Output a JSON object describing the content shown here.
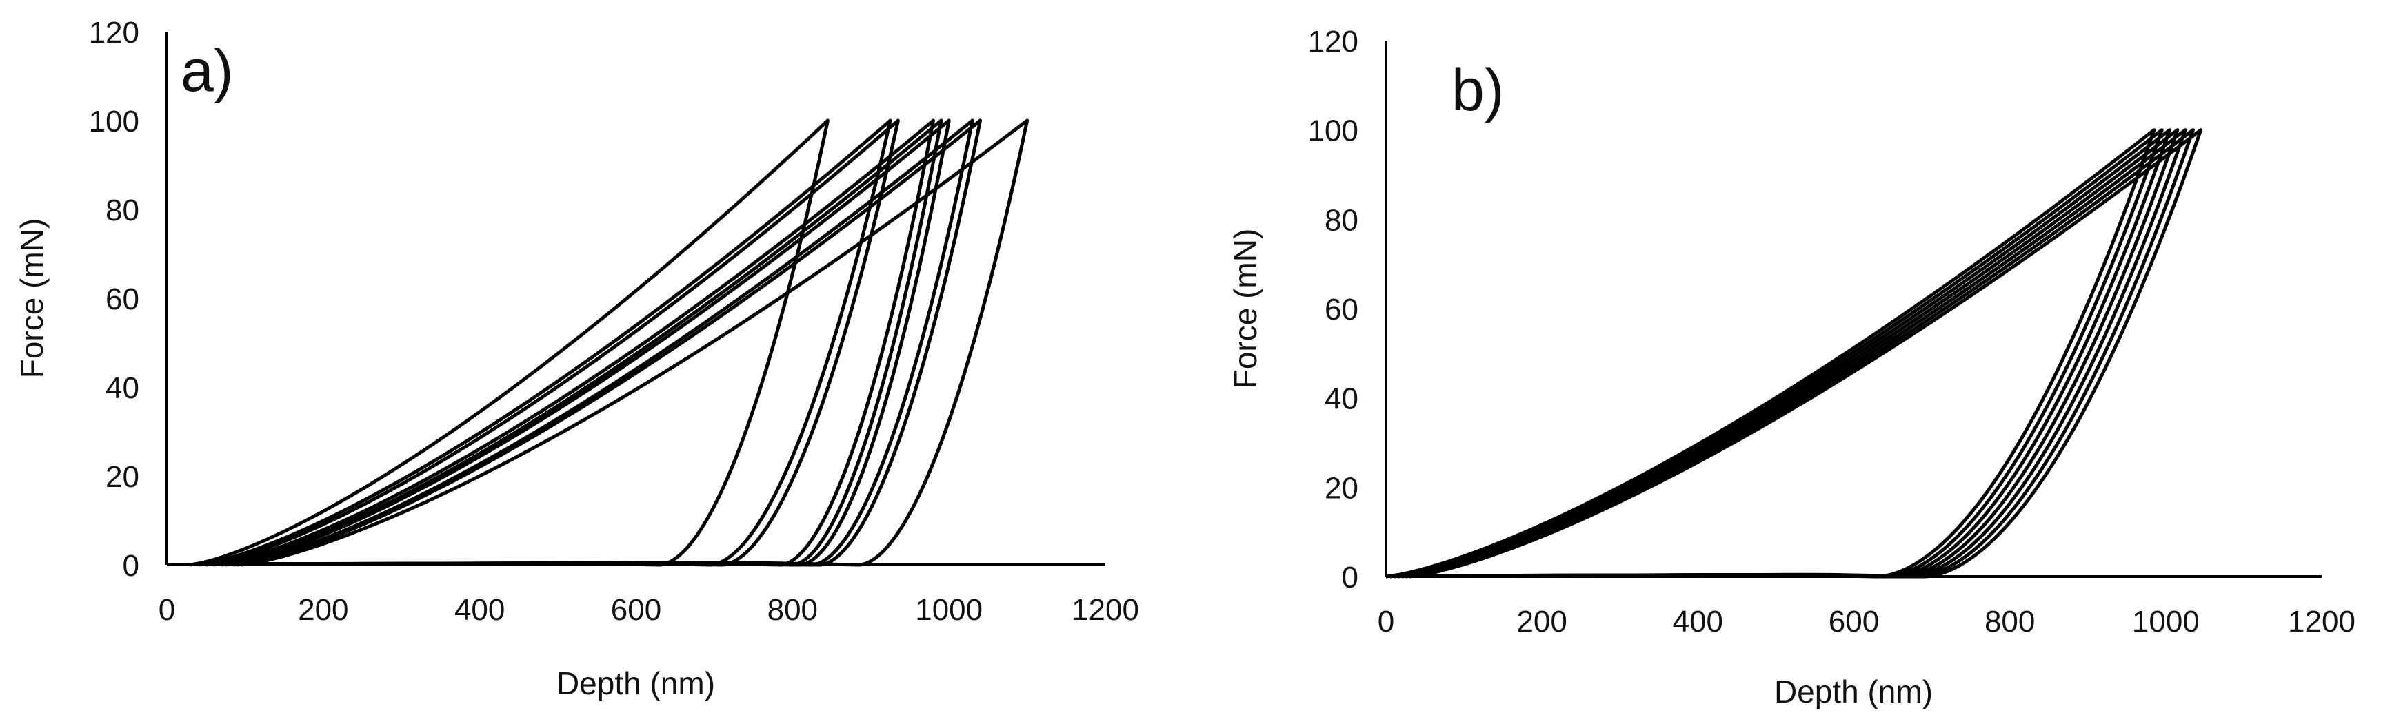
{
  "chart_data": [
    {
      "type": "line",
      "panel_label": "a)",
      "xlabel": "Depth (nm)",
      "ylabel": "Force (mN)",
      "xlim": [
        0,
        1200
      ],
      "ylim": [
        0,
        120
      ],
      "xticks": [
        "0",
        "200",
        "400",
        "600",
        "800",
        "1000",
        "1200"
      ],
      "yticks": [
        "0",
        "20",
        "40",
        "60",
        "80",
        "100",
        "120"
      ],
      "legend": "none",
      "grid": false,
      "line_color": "#000000",
      "curve_model": "loading F = Fmax*(h/hmax)^1.35 (starting at x0); unloading F = Fmax*((h-hf)/(hmax-hf))^1.8; residual near-zero segment from hmax back to hf",
      "series": [
        {
          "x0": 30,
          "hmax": 845,
          "hf": 630,
          "fmax": 100
        },
        {
          "x0": 40,
          "hmax": 925,
          "hf": 695,
          "fmax": 100
        },
        {
          "x0": 50,
          "hmax": 935,
          "hf": 710,
          "fmax": 100
        },
        {
          "x0": 60,
          "hmax": 980,
          "hf": 785,
          "fmax": 100
        },
        {
          "x0": 70,
          "hmax": 990,
          "hf": 800,
          "fmax": 100
        },
        {
          "x0": 75,
          "hmax": 1000,
          "hf": 810,
          "fmax": 100
        },
        {
          "x0": 85,
          "hmax": 1030,
          "hf": 825,
          "fmax": 100
        },
        {
          "x0": 90,
          "hmax": 1040,
          "hf": 835,
          "fmax": 100
        },
        {
          "x0": 95,
          "hmax": 1100,
          "hf": 885,
          "fmax": 100
        }
      ]
    },
    {
      "type": "line",
      "panel_label": "b)",
      "xlabel": "Depth (nm)",
      "ylabel": "Force (mN)",
      "xlim": [
        0,
        1200
      ],
      "ylim": [
        0,
        120
      ],
      "xticks": [
        "0",
        "200",
        "400",
        "600",
        "800",
        "1000",
        "1200"
      ],
      "yticks": [
        "0",
        "20",
        "40",
        "60",
        "80",
        "100",
        "120"
      ],
      "legend": "none",
      "grid": false,
      "line_color": "#000000",
      "curve_model": "same as panel a",
      "series": [
        {
          "x0": 0,
          "hmax": 985,
          "hf": 630,
          "fmax": 100
        },
        {
          "x0": 5,
          "hmax": 995,
          "hf": 640,
          "fmax": 100
        },
        {
          "x0": 10,
          "hmax": 1005,
          "hf": 650,
          "fmax": 100
        },
        {
          "x0": 15,
          "hmax": 1015,
          "hf": 660,
          "fmax": 100
        },
        {
          "x0": 20,
          "hmax": 1025,
          "hf": 670,
          "fmax": 100
        },
        {
          "x0": 25,
          "hmax": 1035,
          "hf": 680,
          "fmax": 100
        },
        {
          "x0": 30,
          "hmax": 1045,
          "hf": 690,
          "fmax": 100
        }
      ]
    }
  ]
}
